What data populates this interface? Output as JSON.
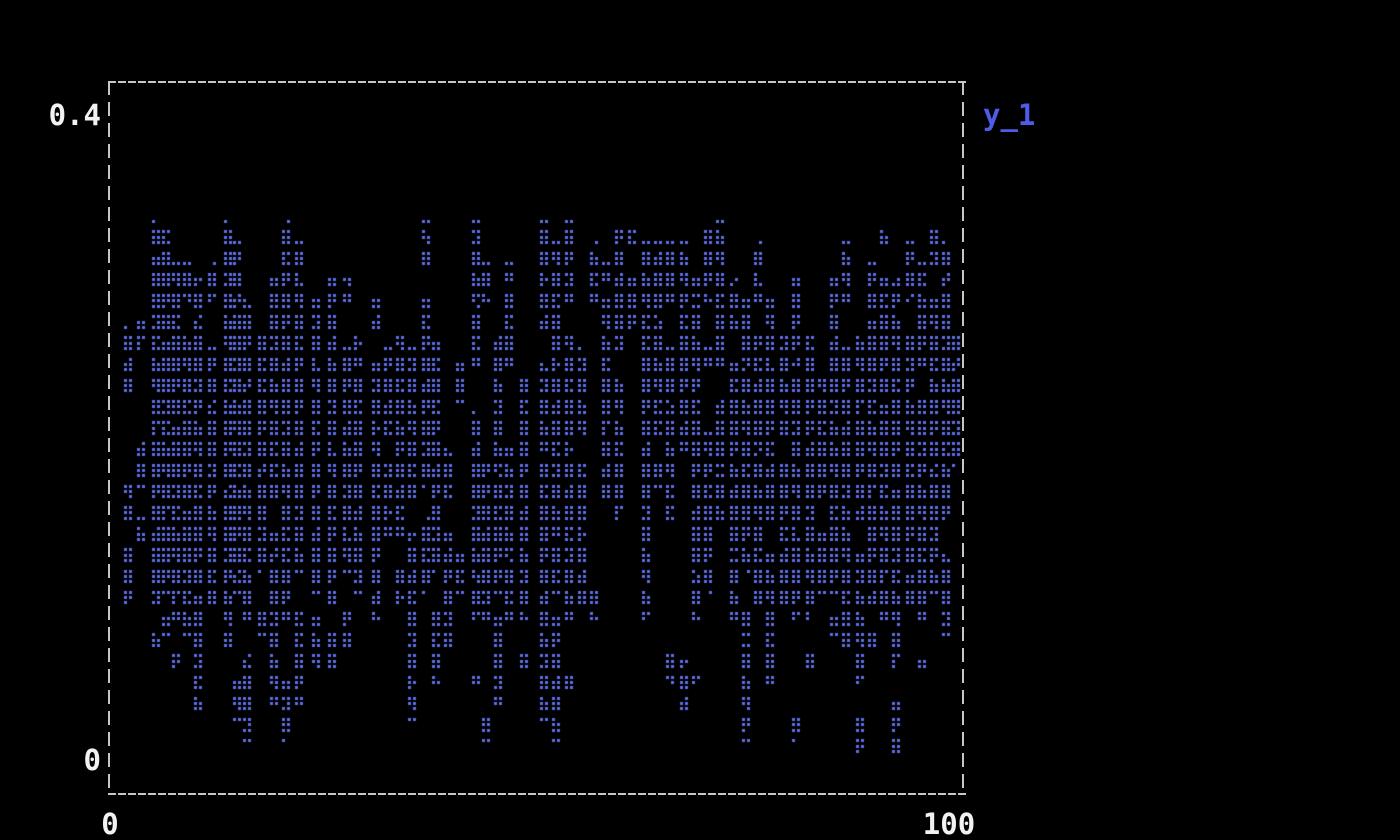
{
  "labels": {
    "y_max": "0.4",
    "y_min": "0",
    "x_min": "0",
    "x_max": "100",
    "legend": "y_1"
  },
  "chart_data": {
    "type": "scatter",
    "title": "",
    "xlabel": "",
    "ylabel": "",
    "xlim": [
      0,
      100
    ],
    "ylim": [
      0,
      0.4
    ],
    "x_tick_labels": [
      "0",
      "100"
    ],
    "y_tick_labels": [
      "0",
      "0.4"
    ],
    "grid": false,
    "legend_position": "outside-top-right",
    "background_color": "#000000",
    "frame_color": "#c6c6c6",
    "marker": "braille-dot",
    "marker_color": "#5f6ee6",
    "legend_color": "#4f5ce8",
    "label_color": "#f2f2f2",
    "series": [
      {
        "name": "y_1",
        "columns_desc": "point cloud encoded as vertical y-ranges (y_top, y_bottom) of dots at each x position",
        "columns": [
          {
            "x": 1.7,
            "s": [
              [
                0.27,
                0.23
              ],
              [
                0.17,
                0.15
              ],
              [
                0.13,
                0.1
              ]
            ]
          },
          {
            "x": 3.2,
            "s": [
              [
                0.272,
                0.252
              ],
              [
                0.2,
                0.17
              ],
              [
                0.152,
                0.138
              ]
            ]
          },
          {
            "x": 5.0,
            "s": [
              [
                0.334,
                0.1
              ],
              [
                0.078,
                0.068
              ]
            ]
          },
          {
            "x": 6.2,
            "s": [
              [
                0.329,
                0.104
              ],
              [
                0.089,
                0.078
              ]
            ]
          },
          {
            "x": 7.3,
            "s": [
              [
                0.31,
                0.089
              ],
              [
                0.068,
                0.057
              ]
            ]
          },
          {
            "x": 8.6,
            "s": [
              [
                0.309,
                0.287
              ],
              [
                0.267,
                0.078
              ]
            ]
          },
          {
            "x": 9.9,
            "s": [
              [
                0.299,
                0.034
              ],
              [
                0.004,
                0.004
              ]
            ]
          },
          {
            "x": 11.6,
            "s": [
              [
                0.309,
                0.287
              ],
              [
                0.257,
                0.096
              ]
            ]
          },
          {
            "x": 13.5,
            "s": [
              [
                0.334,
                0.068
              ]
            ]
          },
          {
            "x": 14.6,
            "s": [
              [
                0.321,
                0.104
              ],
              [
                0.048,
                0.026
              ]
            ]
          },
          {
            "x": 15.7,
            "s": [
              [
                0.287,
                0.09
              ],
              [
                0.07,
                0.014
              ]
            ]
          },
          {
            "x": 17.5,
            "s": [
              [
                0.267,
                0.118
              ],
              [
                0.096,
                0.078
              ]
            ]
          },
          {
            "x": 18.9,
            "s": [
              [
                0.299,
                0.161
              ],
              [
                0.14,
                0.035
              ]
            ]
          },
          {
            "x": 20.4,
            "s": [
              [
                0.334,
                0.089
              ],
              [
                0.048,
                0.014
              ]
            ]
          },
          {
            "x": 21.9,
            "s": [
              [
                0.321,
                0.118
              ],
              [
                0.096,
                0.035
              ]
            ]
          },
          {
            "x": 23.9,
            "s": [
              [
                0.287,
                0.104
              ],
              [
                0.089,
                0.057
              ]
            ]
          },
          {
            "x": 25.8,
            "s": [
              [
                0.299,
                0.096
              ],
              [
                0.078,
                0.057
              ]
            ]
          },
          {
            "x": 27.6,
            "s": [
              [
                0.299,
                0.287
              ],
              [
                0.257,
                0.118
              ],
              [
                0.096,
                0.068
              ]
            ]
          },
          {
            "x": 28.9,
            "s": [
              [
                0.267,
                0.246
              ],
              [
                0.237,
                0.104
              ]
            ]
          },
          {
            "x": 31.0,
            "s": [
              [
                0.287,
                0.267
              ],
              [
                0.246,
                0.089
              ]
            ]
          },
          {
            "x": 32.4,
            "s": [
              [
                0.257,
                0.205
              ],
              [
                0.183,
                0.14
              ]
            ]
          },
          {
            "x": 33.8,
            "s": [
              [
                0.267,
                0.14
              ],
              [
                0.118,
                0.096
              ]
            ]
          },
          {
            "x": 35.3,
            "s": [
              [
                0.257,
                0.161
              ],
              [
                0.14,
                0.026
              ]
            ]
          },
          {
            "x": 36.9,
            "s": [
              [
                0.334,
                0.309
              ],
              [
                0.287,
                0.172
              ],
              [
                0.151,
                0.104
              ]
            ]
          },
          {
            "x": 38.1,
            "s": [
              [
                0.26,
                0.118
              ],
              [
                0.096,
                0.048
              ]
            ]
          },
          {
            "x": 39.5,
            "s": [
              [
                0.195,
                0.161
              ],
              [
                0.14,
                0.068
              ]
            ]
          },
          {
            "x": 40.9,
            "s": [
              [
                0.246,
                0.223
              ],
              [
                0.129,
                0.104
              ]
            ]
          },
          {
            "x": 42.8,
            "s": [
              [
                0.334,
                0.246
              ],
              [
                0.217,
                0.089
              ],
              [
                0.057,
                0.048
              ]
            ]
          },
          {
            "x": 44.0,
            "s": [
              [
                0.309,
                0.287
              ],
              [
                0.183,
                0.089
              ],
              [
                0.026,
                0.014
              ]
            ]
          },
          {
            "x": 45.4,
            "s": [
              [
                0.267,
                0.104
              ],
              [
                0.089,
                0.035
              ]
            ]
          },
          {
            "x": 46.7,
            "s": [
              [
                0.309,
                0.246
              ],
              [
                0.195,
                0.089
              ]
            ]
          },
          {
            "x": 48.5,
            "s": [
              [
                0.237,
                0.089
              ],
              [
                0.068,
                0.057
              ]
            ]
          },
          {
            "x": 50.9,
            "s": [
              [
                0.334,
                0.267
              ],
              [
                0.246,
                0.026
              ]
            ]
          },
          {
            "x": 52.3,
            "s": [
              [
                0.321,
                0.104
              ],
              [
                0.089,
                0.014
              ]
            ]
          },
          {
            "x": 53.8,
            "s": [
              [
                0.334,
                0.287
              ],
              [
                0.267,
                0.089
              ],
              [
                0.057,
                0.045
              ]
            ]
          },
          {
            "x": 55.4,
            "s": [
              [
                0.257,
                0.205
              ],
              [
                0.183,
                0.096
              ]
            ]
          },
          {
            "x": 56.8,
            "s": [
              [
                0.321,
                0.287
              ],
              [
                0.104,
                0.089
              ]
            ]
          },
          {
            "x": 58.2,
            "s": [
              [
                0.309,
                0.299
              ],
              [
                0.287,
                0.161
              ]
            ]
          },
          {
            "x": 59.8,
            "s": [
              [
                0.329,
                0.257
              ],
              [
                0.237,
                0.151
              ]
            ]
          },
          {
            "x": 61.3,
            "s": [
              [
                0.329,
                0.321
              ],
              [
                0.299,
                0.267
              ]
            ]
          },
          {
            "x": 63.0,
            "s": [
              [
                0.321,
                0.089
              ]
            ]
          },
          {
            "x": 64.4,
            "s": [
              [
                0.321,
                0.205
              ],
              [
                0.183,
                0.172
              ]
            ]
          },
          {
            "x": 65.8,
            "s": [
              [
                0.321,
                0.287
              ],
              [
                0.257,
                0.151
              ],
              [
                0.068,
                0.048
              ]
            ]
          },
          {
            "x": 67.5,
            "s": [
              [
                0.321,
                0.195
              ],
              [
                0.062,
                0.034
              ]
            ]
          },
          {
            "x": 68.9,
            "s": [
              [
                0.299,
                0.089
              ],
              [
                0.057,
                0.048
              ]
            ]
          },
          {
            "x": 70.3,
            "s": [
              [
                0.329,
                0.287
              ],
              [
                0.257,
                0.246
              ],
              [
                0.205,
                0.104
              ]
            ]
          },
          {
            "x": 71.7,
            "s": [
              [
                0.334,
                0.246
              ],
              [
                0.223,
                0.151
              ]
            ]
          },
          {
            "x": 73.4,
            "s": [
              [
                0.299,
                0.267
              ],
              [
                0.246,
                0.089
              ]
            ]
          },
          {
            "x": 74.8,
            "s": [
              [
                0.287,
                0.118
              ],
              [
                0.096,
                0.014
              ]
            ]
          },
          {
            "x": 76.2,
            "s": [
              [
                0.321,
                0.287
              ],
              [
                0.267,
                0.096
              ]
            ]
          },
          {
            "x": 77.6,
            "s": [
              [
                0.287,
                0.151
              ],
              [
                0.129,
                0.048
              ]
            ]
          },
          {
            "x": 79.3,
            "s": [
              [
                0.267,
                0.205
              ],
              [
                0.183,
                0.096
              ]
            ]
          },
          {
            "x": 80.7,
            "s": [
              [
                0.299,
                0.246
              ],
              [
                0.237,
                0.089
              ],
              [
                0.026,
                0.014
              ]
            ]
          },
          {
            "x": 82.4,
            "s": [
              [
                0.267,
                0.089
              ],
              [
                0.068,
                0.057
              ]
            ]
          },
          {
            "x": 83.8,
            "s": [
              [
                0.237,
                0.161
              ],
              [
                0.14,
                0.104
              ]
            ]
          },
          {
            "x": 85.2,
            "s": [
              [
                0.299,
                0.104
              ],
              [
                0.089,
                0.078
              ]
            ]
          },
          {
            "x": 86.6,
            "s": [
              [
                0.321,
                0.287
              ],
              [
                0.257,
                0.068
              ]
            ]
          },
          {
            "x": 88.3,
            "s": [
              [
                0.267,
                0.151
              ],
              [
                0.129,
                0.048
              ],
              [
                0.026,
                0.004
              ]
            ]
          },
          {
            "x": 89.7,
            "s": [
              [
                0.309,
                0.096
              ],
              [
                0.078,
                0.068
              ]
            ]
          },
          {
            "x": 91.1,
            "s": [
              [
                0.329,
                0.321
              ],
              [
                0.299,
                0.089
              ]
            ]
          },
          {
            "x": 92.5,
            "s": [
              [
                0.299,
                0.057
              ],
              [
                0.035,
                0.004
              ]
            ]
          },
          {
            "x": 94.2,
            "s": [
              [
                0.321,
                0.287
              ],
              [
                0.267,
                0.096
              ]
            ]
          },
          {
            "x": 95.6,
            "s": [
              [
                0.309,
                0.246
              ],
              [
                0.223,
                0.089
              ],
              [
                0.068,
                0.057
              ]
            ]
          },
          {
            "x": 97.0,
            "s": [
              [
                0.329,
                0.309
              ],
              [
                0.287,
                0.104
              ]
            ]
          },
          {
            "x": 98.5,
            "s": [
              [
                0.321,
                0.151
              ],
              [
                0.129,
                0.078
              ]
            ]
          },
          {
            "x": 99.6,
            "s": [
              [
                0.267,
                0.183
              ]
            ]
          }
        ]
      }
    ]
  }
}
